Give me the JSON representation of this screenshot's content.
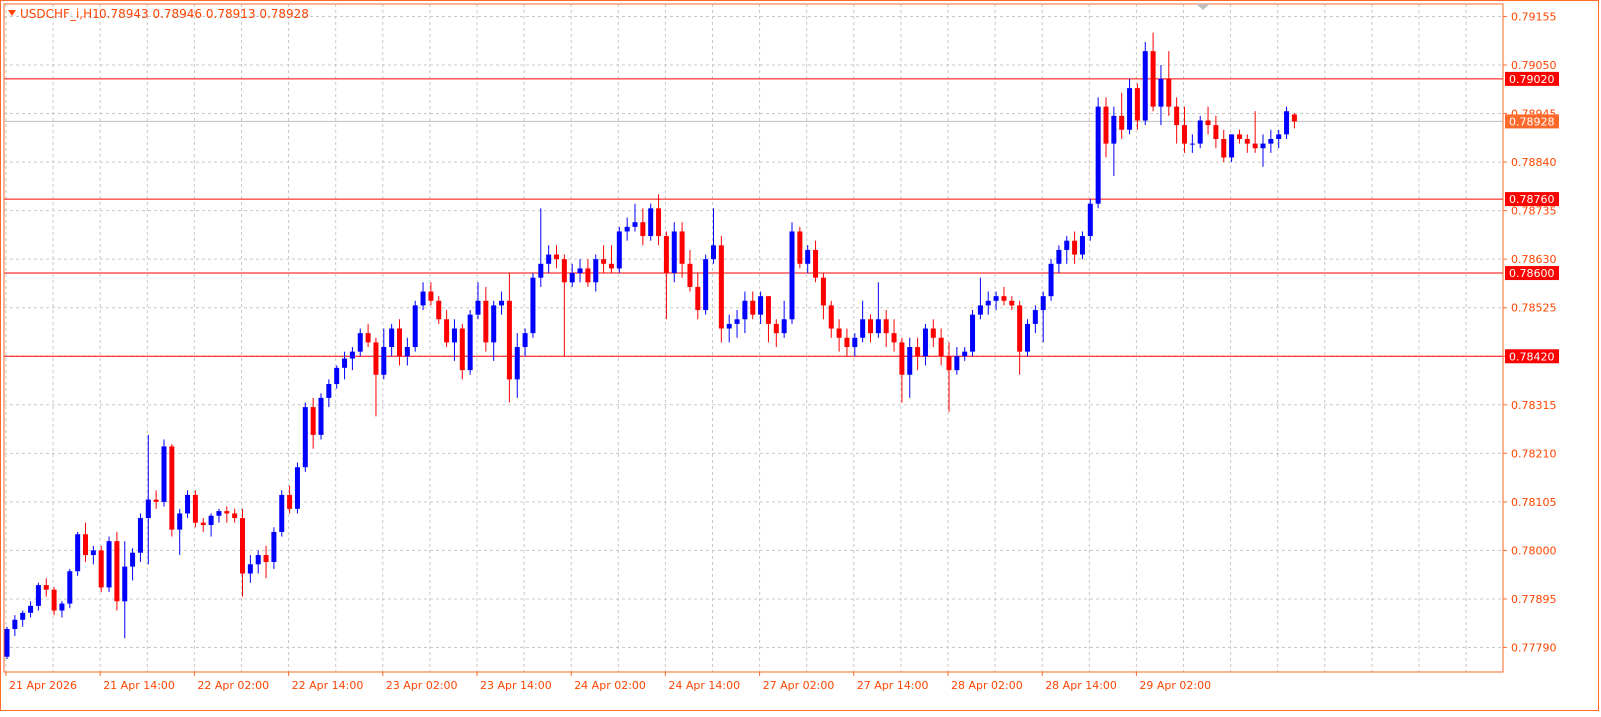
{
  "header": {
    "symbol": "USDCHF_i,H1",
    "ohlc": "0.78943 0.78946 0.78913 0.78928"
  },
  "colors": {
    "frame": "#ff6a2a",
    "grid": "#c8c8c8",
    "bull": "#0000ff",
    "bear": "#ff0000",
    "level_line": "#ff0000",
    "bid_line": "#c0c0c0",
    "bid_tag": "#ff6a2a",
    "axis_text": "#ff4500",
    "bid_marker": "#c0c0c0"
  },
  "chart_data": {
    "type": "candlestick",
    "timeframe": "H1",
    "ylim": [
      0.77737,
      0.79182
    ],
    "y_ticks": [
      "0.79155",
      "0.79050",
      "0.78945",
      "0.78840",
      "0.78735",
      "0.78630",
      "0.78525",
      "0.78420",
      "0.78315",
      "0.78210",
      "0.78105",
      "0.78000",
      "0.77895",
      "0.77790"
    ],
    "x_ticks": [
      {
        "label": "21 Apr 2026",
        "bar": 0
      },
      {
        "label": "21 Apr 14:00",
        "bar": 12
      },
      {
        "label": "22 Apr 02:00",
        "bar": 24
      },
      {
        "label": "22 Apr 14:00",
        "bar": 36
      },
      {
        "label": "23 Apr 02:00",
        "bar": 48
      },
      {
        "label": "23 Apr 14:00",
        "bar": 60
      },
      {
        "label": "24 Apr 02:00",
        "bar": 72
      },
      {
        "label": "24 Apr 14:00",
        "bar": 84
      },
      {
        "label": "27 Apr 02:00",
        "bar": 96
      },
      {
        "label": "27 Apr 14:00",
        "bar": 108
      },
      {
        "label": "28 Apr 02:00",
        "bar": 120
      },
      {
        "label": "28 Apr 14:00",
        "bar": 132
      },
      {
        "label": "29 Apr 02:00",
        "bar": 144
      }
    ],
    "levels": [
      {
        "value": 0.7902,
        "label": "0.79020"
      },
      {
        "value": 0.7876,
        "label": "0.78760"
      },
      {
        "value": 0.786,
        "label": "0.78600"
      },
      {
        "value": 0.7842,
        "label": "0.78420"
      }
    ],
    "bid": {
      "value": 0.78928,
      "label": "0.78928"
    },
    "candles": [
      [
        0.7777,
        0.77835,
        0.77765,
        0.7783
      ],
      [
        0.7783,
        0.7786,
        0.77815,
        0.7785
      ],
      [
        0.7785,
        0.7787,
        0.77835,
        0.77865
      ],
      [
        0.77865,
        0.7789,
        0.77855,
        0.7788
      ],
      [
        0.7788,
        0.7793,
        0.7787,
        0.77925
      ],
      [
        0.77925,
        0.7794,
        0.779,
        0.77915
      ],
      [
        0.77915,
        0.7792,
        0.7786,
        0.7787
      ],
      [
        0.7787,
        0.7789,
        0.77855,
        0.77885
      ],
      [
        0.77885,
        0.7796,
        0.77875,
        0.77955
      ],
      [
        0.77955,
        0.7804,
        0.77945,
        0.78035
      ],
      [
        0.78035,
        0.7806,
        0.77975,
        0.7799
      ],
      [
        0.7799,
        0.7801,
        0.7797,
        0.78
      ],
      [
        0.78,
        0.7801,
        0.7791,
        0.7792
      ],
      [
        0.7792,
        0.7803,
        0.7791,
        0.7802
      ],
      [
        0.7802,
        0.7804,
        0.7787,
        0.7789
      ],
      [
        0.7789,
        0.7802,
        0.7781,
        0.77965
      ],
      [
        0.77965,
        0.78005,
        0.77935,
        0.77995
      ],
      [
        0.77995,
        0.7808,
        0.77975,
        0.7807
      ],
      [
        0.7807,
        0.7825,
        0.7797,
        0.7811
      ],
      [
        0.7811,
        0.7813,
        0.7809,
        0.78105
      ],
      [
        0.78105,
        0.7824,
        0.78095,
        0.78225
      ],
      [
        0.78225,
        0.7823,
        0.7803,
        0.78045
      ],
      [
        0.78045,
        0.7809,
        0.7799,
        0.7808
      ],
      [
        0.7808,
        0.7813,
        0.7807,
        0.7812
      ],
      [
        0.7812,
        0.7813,
        0.7805,
        0.7806
      ],
      [
        0.7806,
        0.7807,
        0.7804,
        0.78055
      ],
      [
        0.78055,
        0.7808,
        0.7803,
        0.78075
      ],
      [
        0.78075,
        0.7809,
        0.7806,
        0.78085
      ],
      [
        0.78085,
        0.78095,
        0.7806,
        0.7808
      ],
      [
        0.7808,
        0.7809,
        0.7806,
        0.7807
      ],
      [
        0.7807,
        0.7809,
        0.779,
        0.7795
      ],
      [
        0.7795,
        0.7799,
        0.7793,
        0.7797
      ],
      [
        0.7797,
        0.78,
        0.7795,
        0.7799
      ],
      [
        0.7799,
        0.7801,
        0.7794,
        0.77975
      ],
      [
        0.77975,
        0.7805,
        0.7796,
        0.7804
      ],
      [
        0.7804,
        0.7813,
        0.7803,
        0.7812
      ],
      [
        0.7812,
        0.7814,
        0.7808,
        0.7809
      ],
      [
        0.7809,
        0.7819,
        0.7808,
        0.7818
      ],
      [
        0.7818,
        0.7832,
        0.7817,
        0.7831
      ],
      [
        0.7831,
        0.7833,
        0.7822,
        0.7825
      ],
      [
        0.7825,
        0.7834,
        0.7824,
        0.7833
      ],
      [
        0.7833,
        0.7837,
        0.7831,
        0.7836
      ],
      [
        0.7836,
        0.784,
        0.7835,
        0.78395
      ],
      [
        0.78395,
        0.7843,
        0.7837,
        0.78415
      ],
      [
        0.78415,
        0.7844,
        0.7839,
        0.7843
      ],
      [
        0.7843,
        0.7848,
        0.7842,
        0.7847
      ],
      [
        0.7847,
        0.7849,
        0.7844,
        0.7845
      ],
      [
        0.7845,
        0.7846,
        0.7829,
        0.7838
      ],
      [
        0.7838,
        0.7848,
        0.7837,
        0.7844
      ],
      [
        0.7844,
        0.7849,
        0.7842,
        0.7848
      ],
      [
        0.7848,
        0.785,
        0.784,
        0.7842
      ],
      [
        0.7842,
        0.7846,
        0.784,
        0.7844
      ],
      [
        0.7844,
        0.7854,
        0.7843,
        0.7853
      ],
      [
        0.7853,
        0.7858,
        0.7852,
        0.7856
      ],
      [
        0.7856,
        0.7858,
        0.7853,
        0.7854
      ],
      [
        0.7854,
        0.7855,
        0.7849,
        0.785
      ],
      [
        0.785,
        0.7852,
        0.7844,
        0.7845
      ],
      [
        0.7845,
        0.785,
        0.7841,
        0.7848
      ],
      [
        0.7848,
        0.7849,
        0.7837,
        0.7839
      ],
      [
        0.7839,
        0.7852,
        0.7838,
        0.7851
      ],
      [
        0.7851,
        0.7858,
        0.785,
        0.7854
      ],
      [
        0.7854,
        0.7857,
        0.7843,
        0.7845
      ],
      [
        0.7845,
        0.7854,
        0.7841,
        0.7853
      ],
      [
        0.7853,
        0.7856,
        0.7851,
        0.7854
      ],
      [
        0.7854,
        0.786,
        0.7832,
        0.7837
      ],
      [
        0.7837,
        0.7847,
        0.7833,
        0.7844
      ],
      [
        0.7844,
        0.7848,
        0.7842,
        0.7847
      ],
      [
        0.7847,
        0.786,
        0.7846,
        0.7859
      ],
      [
        0.7859,
        0.7874,
        0.7857,
        0.7862
      ],
      [
        0.7862,
        0.7866,
        0.786,
        0.7864
      ],
      [
        0.7864,
        0.7866,
        0.7861,
        0.7863
      ],
      [
        0.7863,
        0.7864,
        0.7842,
        0.7858
      ],
      [
        0.7858,
        0.7862,
        0.7857,
        0.786
      ],
      [
        0.786,
        0.7863,
        0.7858,
        0.7861
      ],
      [
        0.7861,
        0.7863,
        0.7857,
        0.7858
      ],
      [
        0.7858,
        0.7864,
        0.7856,
        0.7863
      ],
      [
        0.7863,
        0.7866,
        0.786,
        0.7862
      ],
      [
        0.7862,
        0.7866,
        0.786,
        0.7861
      ],
      [
        0.7861,
        0.787,
        0.786,
        0.7869
      ],
      [
        0.7869,
        0.7872,
        0.7867,
        0.787
      ],
      [
        0.787,
        0.7875,
        0.7869,
        0.7871
      ],
      [
        0.7871,
        0.7874,
        0.7866,
        0.7868
      ],
      [
        0.7868,
        0.7875,
        0.7867,
        0.7874
      ],
      [
        0.7874,
        0.7877,
        0.7866,
        0.7868
      ],
      [
        0.7868,
        0.7869,
        0.785,
        0.786
      ],
      [
        0.786,
        0.7871,
        0.7858,
        0.7869
      ],
      [
        0.7869,
        0.7871,
        0.7859,
        0.7862
      ],
      [
        0.7862,
        0.7865,
        0.7856,
        0.7857
      ],
      [
        0.7857,
        0.786,
        0.785,
        0.7852
      ],
      [
        0.7852,
        0.7864,
        0.7851,
        0.7863
      ],
      [
        0.7863,
        0.7874,
        0.7862,
        0.7866
      ],
      [
        0.7866,
        0.7868,
        0.7845,
        0.7848
      ],
      [
        0.7848,
        0.7851,
        0.7845,
        0.7849
      ],
      [
        0.7849,
        0.7852,
        0.7846,
        0.785
      ],
      [
        0.785,
        0.7856,
        0.7847,
        0.7854
      ],
      [
        0.7854,
        0.7856,
        0.785,
        0.7851
      ],
      [
        0.7851,
        0.7856,
        0.7849,
        0.7855
      ],
      [
        0.7855,
        0.7855,
        0.7845,
        0.7849
      ],
      [
        0.7849,
        0.785,
        0.7844,
        0.7847
      ],
      [
        0.7847,
        0.7854,
        0.7846,
        0.785
      ],
      [
        0.785,
        0.7871,
        0.7849,
        0.7869
      ],
      [
        0.7869,
        0.787,
        0.7861,
        0.7862
      ],
      [
        0.7862,
        0.7866,
        0.786,
        0.7865
      ],
      [
        0.7865,
        0.7867,
        0.7858,
        0.7859
      ],
      [
        0.7859,
        0.786,
        0.785,
        0.7853
      ],
      [
        0.7853,
        0.7854,
        0.7846,
        0.7848
      ],
      [
        0.7848,
        0.785,
        0.7843,
        0.7846
      ],
      [
        0.7846,
        0.7848,
        0.7842,
        0.7844
      ],
      [
        0.7844,
        0.7847,
        0.7842,
        0.7846
      ],
      [
        0.7846,
        0.7854,
        0.7845,
        0.785
      ],
      [
        0.785,
        0.7851,
        0.7845,
        0.7847
      ],
      [
        0.7847,
        0.7858,
        0.7846,
        0.785
      ],
      [
        0.785,
        0.7852,
        0.7844,
        0.7847
      ],
      [
        0.7847,
        0.785,
        0.7843,
        0.7845
      ],
      [
        0.7845,
        0.7846,
        0.7832,
        0.7838
      ],
      [
        0.7838,
        0.7846,
        0.7833,
        0.7844
      ],
      [
        0.7844,
        0.7846,
        0.7839,
        0.7842
      ],
      [
        0.7842,
        0.7849,
        0.784,
        0.7848
      ],
      [
        0.7848,
        0.785,
        0.7844,
        0.7846
      ],
      [
        0.7846,
        0.7848,
        0.784,
        0.7842
      ],
      [
        0.7842,
        0.7845,
        0.783,
        0.7839
      ],
      [
        0.7839,
        0.7844,
        0.7838,
        0.7842
      ],
      [
        0.7842,
        0.7844,
        0.7841,
        0.7843
      ],
      [
        0.7843,
        0.7852,
        0.7842,
        0.7851
      ],
      [
        0.7851,
        0.7859,
        0.785,
        0.7853
      ],
      [
        0.7853,
        0.7856,
        0.7851,
        0.7854
      ],
      [
        0.7854,
        0.7856,
        0.7852,
        0.7855
      ],
      [
        0.7855,
        0.7857,
        0.7853,
        0.7854
      ],
      [
        0.7854,
        0.7855,
        0.7852,
        0.7853
      ],
      [
        0.7853,
        0.7854,
        0.7838,
        0.7843
      ],
      [
        0.7843,
        0.785,
        0.7842,
        0.7849
      ],
      [
        0.7849,
        0.7853,
        0.7847,
        0.7852
      ],
      [
        0.7852,
        0.7856,
        0.7845,
        0.7855
      ],
      [
        0.7855,
        0.7863,
        0.7854,
        0.7862
      ],
      [
        0.7862,
        0.7866,
        0.786,
        0.7865
      ],
      [
        0.7865,
        0.7868,
        0.7862,
        0.7867
      ],
      [
        0.7867,
        0.7869,
        0.7862,
        0.7864
      ],
      [
        0.7864,
        0.7869,
        0.7863,
        0.7868
      ],
      [
        0.7868,
        0.7876,
        0.7867,
        0.7875
      ],
      [
        0.7875,
        0.7898,
        0.7874,
        0.7896
      ],
      [
        0.7896,
        0.7898,
        0.7885,
        0.7888
      ],
      [
        0.7888,
        0.7896,
        0.7881,
        0.7894
      ],
      [
        0.7894,
        0.7899,
        0.7889,
        0.7891
      ],
      [
        0.7891,
        0.7902,
        0.789,
        0.79
      ],
      [
        0.79,
        0.7901,
        0.7891,
        0.7893
      ],
      [
        0.7893,
        0.791,
        0.7892,
        0.7908
      ],
      [
        0.7908,
        0.7912,
        0.7895,
        0.7896
      ],
      [
        0.7896,
        0.7905,
        0.7892,
        0.7902
      ],
      [
        0.7902,
        0.7908,
        0.7894,
        0.7896
      ],
      [
        0.7896,
        0.7898,
        0.7888,
        0.7892
      ],
      [
        0.7892,
        0.7896,
        0.7886,
        0.7888
      ],
      [
        0.7888,
        0.789,
        0.7886,
        0.7888
      ],
      [
        0.7888,
        0.7894,
        0.7887,
        0.7893
      ],
      [
        0.7893,
        0.7896,
        0.789,
        0.7892
      ],
      [
        0.7892,
        0.7894,
        0.7887,
        0.7889
      ],
      [
        0.7889,
        0.7891,
        0.7884,
        0.7885
      ],
      [
        0.7885,
        0.789,
        0.7884,
        0.789
      ],
      [
        0.789,
        0.7891,
        0.7888,
        0.7889
      ],
      [
        0.7889,
        0.789,
        0.7886,
        0.7888
      ],
      [
        0.7888,
        0.7895,
        0.7886,
        0.7887
      ],
      [
        0.7887,
        0.789,
        0.7883,
        0.7888
      ],
      [
        0.7888,
        0.7891,
        0.7886,
        0.7889
      ],
      [
        0.7889,
        0.7891,
        0.7887,
        0.789
      ],
      [
        0.789,
        0.7896,
        0.7889,
        0.7895
      ],
      [
        0.78943,
        0.78946,
        0.78913,
        0.78928
      ]
    ]
  }
}
